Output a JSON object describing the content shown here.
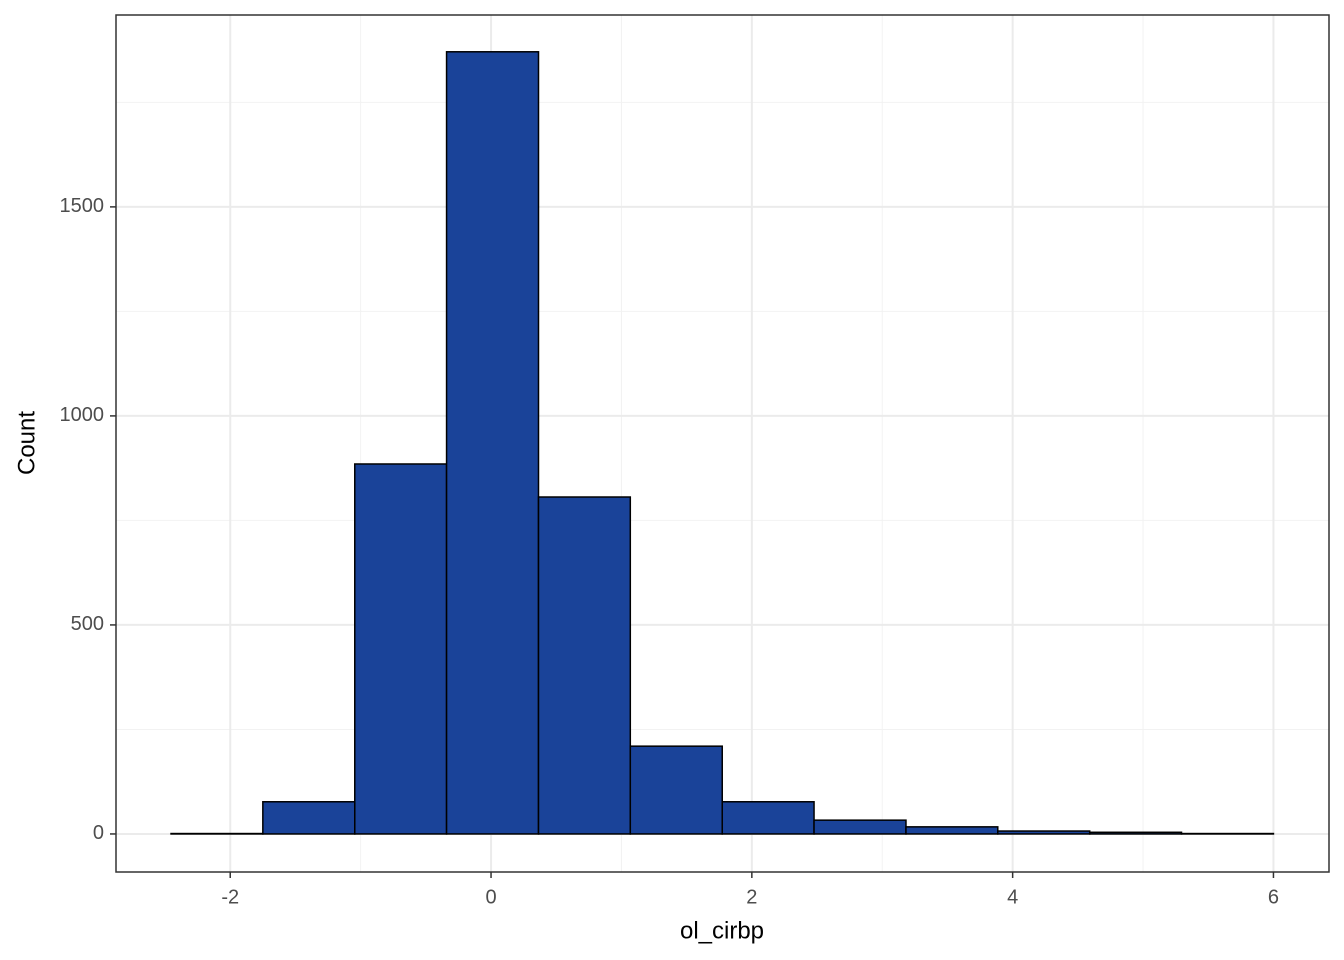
{
  "chart_data": {
    "type": "histogram",
    "x_label": "ol_cirbp",
    "y_label": "Count",
    "bins": [
      -2.454,
      -1.75,
      -1.045,
      -0.341,
      0.364,
      1.068,
      1.773,
      2.477,
      3.182,
      3.886,
      4.591,
      5.295,
      6.0
    ],
    "counts": [
      1,
      77,
      885,
      1871,
      806,
      210,
      77,
      33,
      17,
      7,
      4,
      1
    ],
    "color": "#1a4399",
    "edge_color": "#000000",
    "xlim": [
      -2.876,
      6.426
    ],
    "xticks": [
      -2,
      0,
      2,
      4,
      6
    ],
    "x_minor_grid": [
      -1,
      1,
      3,
      5
    ],
    "ylim": [
      -91,
      1959
    ],
    "yticks": [
      0,
      500,
      1000,
      1500
    ],
    "y_minor_grid": [
      250,
      750,
      1250,
      1750
    ],
    "grid": true
  }
}
